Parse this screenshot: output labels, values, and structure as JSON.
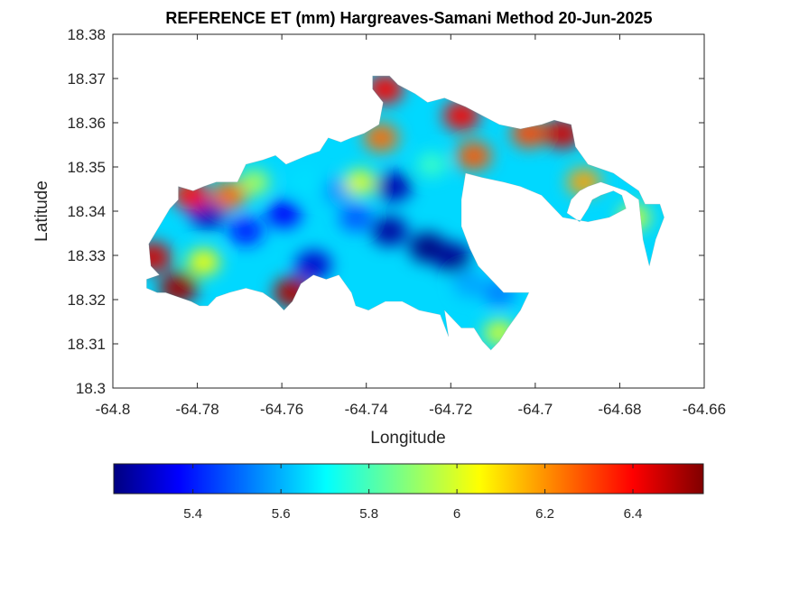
{
  "chart_data": {
    "type": "heatmap",
    "title": "REFERENCE ET (mm) Hargreaves-Samani Method  20-Jun-2025",
    "xlabel": "Longitude",
    "ylabel": "Latitude",
    "xlim": [
      -64.8,
      -64.66
    ],
    "ylim": [
      18.3,
      18.38
    ],
    "x_ticks": [
      -64.8,
      -64.78,
      -64.76,
      -64.74,
      -64.72,
      -64.7,
      -64.68,
      -64.66
    ],
    "x_tick_labels": [
      "-64.8",
      "-64.78",
      "-64.76",
      "-64.74",
      "-64.72",
      "-64.7",
      "-64.68",
      "-64.66"
    ],
    "y_ticks": [
      18.3,
      18.31,
      18.32,
      18.33,
      18.34,
      18.35,
      18.36,
      18.37,
      18.38
    ],
    "y_tick_labels": [
      "18.3",
      "18.31",
      "18.32",
      "18.33",
      "18.34",
      "18.35",
      "18.36",
      "18.37",
      "18.38"
    ],
    "colorbar": {
      "colormap": "jet",
      "clim": [
        5.22,
        6.56
      ],
      "ticks": [
        5.4,
        5.6,
        5.8,
        6,
        6.2,
        6.4
      ],
      "tick_labels": [
        "5.4",
        "5.6",
        "5.8",
        "6",
        "6.2",
        "6.4"
      ],
      "placement": "bottom"
    },
    "grid": false,
    "boundary": [
      [
        -64.792,
        18.3226
      ],
      [
        -64.792,
        18.3246
      ],
      [
        -64.789,
        18.3256
      ],
      [
        -64.791,
        18.3276
      ],
      [
        -64.7915,
        18.3326
      ],
      [
        -64.789,
        18.3366
      ],
      [
        -64.7865,
        18.3406
      ],
      [
        -64.7845,
        18.3426
      ],
      [
        -64.7845,
        18.3456
      ],
      [
        -64.781,
        18.3446
      ],
      [
        -64.7785,
        18.3456
      ],
      [
        -64.7755,
        18.3466
      ],
      [
        -64.7705,
        18.3466
      ],
      [
        -64.7685,
        18.3506
      ],
      [
        -64.7645,
        18.3516
      ],
      [
        -64.7615,
        18.3526
      ],
      [
        -64.759,
        18.3506
      ],
      [
        -64.754,
        18.3526
      ],
      [
        -64.751,
        18.3536
      ],
      [
        -64.749,
        18.3566
      ],
      [
        -64.746,
        18.3556
      ],
      [
        -64.7435,
        18.3566
      ],
      [
        -64.7405,
        18.3576
      ],
      [
        -64.737,
        18.3596
      ],
      [
        -64.736,
        18.3646
      ],
      [
        -64.7385,
        18.3676
      ],
      [
        -64.7385,
        18.3706
      ],
      [
        -64.7345,
        18.3706
      ],
      [
        -64.7325,
        18.3686
      ],
      [
        -64.7285,
        18.3666
      ],
      [
        -64.7255,
        18.3646
      ],
      [
        -64.7215,
        18.3656
      ],
      [
        -64.7165,
        18.3636
      ],
      [
        -64.7125,
        18.3616
      ],
      [
        -64.7085,
        18.3596
      ],
      [
        -64.7035,
        18.3586
      ],
      [
        -64.6985,
        18.3596
      ],
      [
        -64.6955,
        18.3606
      ],
      [
        -64.6915,
        18.3596
      ],
      [
        -64.6905,
        18.3546
      ],
      [
        -64.6875,
        18.3506
      ],
      [
        -64.6845,
        18.3496
      ],
      [
        -64.6815,
        18.3486
      ],
      [
        -64.6785,
        18.3466
      ],
      [
        -64.6755,
        18.3446
      ],
      [
        -64.674,
        18.3416
      ],
      [
        -64.6705,
        18.3416
      ],
      [
        -64.6695,
        18.3386
      ],
      [
        -64.6715,
        18.3336
      ],
      [
        -64.673,
        18.3276
      ],
      [
        -64.6745,
        18.3336
      ],
      [
        -64.6755,
        18.3426
      ],
      [
        -64.6785,
        18.3446
      ],
      [
        -64.6815,
        18.3456
      ],
      [
        -64.6845,
        18.3466
      ],
      [
        -64.6875,
        18.3456
      ],
      [
        -64.6895,
        18.3446
      ],
      [
        -64.6915,
        18.3426
      ],
      [
        -64.6925,
        18.3396
      ],
      [
        -64.6895,
        18.3376
      ],
      [
        -64.6875,
        18.3406
      ],
      [
        -64.6865,
        18.3426
      ],
      [
        -64.6845,
        18.3436
      ],
      [
        -64.6815,
        18.3446
      ],
      [
        -64.6795,
        18.3436
      ],
      [
        -64.6785,
        18.3406
      ],
      [
        -64.6825,
        18.3386
      ],
      [
        -64.6875,
        18.3376
      ],
      [
        -64.6935,
        18.3386
      ],
      [
        -64.6985,
        18.3436
      ],
      [
        -64.7035,
        18.3456
      ],
      [
        -64.7075,
        18.3466
      ],
      [
        -64.7125,
        18.3476
      ],
      [
        -64.7165,
        18.3486
      ],
      [
        -64.7175,
        18.3426
      ],
      [
        -64.7175,
        18.3366
      ],
      [
        -64.7155,
        18.3316
      ],
      [
        -64.7135,
        18.3276
      ],
      [
        -64.7105,
        18.3246
      ],
      [
        -64.7075,
        18.3216
      ],
      [
        -64.7015,
        18.3216
      ],
      [
        -64.7035,
        18.3176
      ],
      [
        -64.7065,
        18.3136
      ],
      [
        -64.7085,
        18.3106
      ],
      [
        -64.7105,
        18.3086
      ],
      [
        -64.7125,
        18.3106
      ],
      [
        -64.7145,
        18.3136
      ],
      [
        -64.7175,
        18.3136
      ],
      [
        -64.7195,
        18.3156
      ],
      [
        -64.7215,
        18.3176
      ],
      [
        -64.7205,
        18.3116
      ],
      [
        -64.7225,
        18.3166
      ],
      [
        -64.7275,
        18.3176
      ],
      [
        -64.7315,
        18.3196
      ],
      [
        -64.7355,
        18.3196
      ],
      [
        -64.7395,
        18.3176
      ],
      [
        -64.7425,
        18.3186
      ],
      [
        -64.7435,
        18.3216
      ],
      [
        -64.7465,
        18.3256
      ],
      [
        -64.7495,
        18.3246
      ],
      [
        -64.7525,
        18.3256
      ],
      [
        -64.7555,
        18.3236
      ],
      [
        -64.7575,
        18.3196
      ],
      [
        -64.7595,
        18.3176
      ],
      [
        -64.7615,
        18.3196
      ],
      [
        -64.7645,
        18.3216
      ],
      [
        -64.7685,
        18.3226
      ],
      [
        -64.7725,
        18.3216
      ],
      [
        -64.7755,
        18.3206
      ],
      [
        -64.7775,
        18.3186
      ],
      [
        -64.7795,
        18.3186
      ],
      [
        -64.7815,
        18.3196
      ],
      [
        -64.7845,
        18.3206
      ],
      [
        -64.7875,
        18.3216
      ],
      [
        -64.7895,
        18.3216
      ]
    ],
    "hotspots": [
      {
        "lon": -64.7255,
        "lat": 18.3318,
        "value": 5.22
      },
      {
        "lon": -64.7195,
        "lat": 18.3295,
        "value": 5.24
      },
      {
        "lon": -64.7345,
        "lat": 18.3355,
        "value": 5.26
      },
      {
        "lon": -64.7335,
        "lat": 18.3455,
        "value": 5.28
      },
      {
        "lon": -64.7775,
        "lat": 18.3394,
        "value": 5.3
      },
      {
        "lon": -64.7525,
        "lat": 18.3278,
        "value": 5.32
      },
      {
        "lon": -64.7595,
        "lat": 18.3394,
        "value": 5.38
      },
      {
        "lon": -64.7685,
        "lat": 18.3355,
        "value": 5.42
      },
      {
        "lon": -64.7425,
        "lat": 18.3385,
        "value": 5.5
      },
      {
        "lon": -64.7465,
        "lat": 18.3445,
        "value": 5.58
      },
      {
        "lon": -64.7085,
        "lat": 18.3215,
        "value": 5.55
      },
      {
        "lon": -64.7155,
        "lat": 18.3236,
        "value": 5.6
      },
      {
        "lon": -64.7545,
        "lat": 18.3465,
        "value": 5.68
      },
      {
        "lon": -64.7245,
        "lat": 18.3505,
        "value": 5.8
      },
      {
        "lon": -64.7035,
        "lat": 18.3275,
        "value": 5.85
      },
      {
        "lon": -64.7415,
        "lat": 18.3465,
        "value": 6.02
      },
      {
        "lon": -64.7665,
        "lat": 18.3465,
        "value": 5.95
      },
      {
        "lon": -64.7785,
        "lat": 18.3285,
        "value": 6.05
      },
      {
        "lon": -64.7085,
        "lat": 18.3125,
        "value": 6.0
      },
      {
        "lon": -64.6765,
        "lat": 18.3386,
        "value": 6.0
      },
      {
        "lon": -64.6885,
        "lat": 18.3466,
        "value": 6.18
      },
      {
        "lon": -64.7365,
        "lat": 18.3566,
        "value": 6.25
      },
      {
        "lon": -64.7725,
        "lat": 18.3435,
        "value": 6.25
      },
      {
        "lon": -64.7905,
        "lat": 18.3296,
        "value": 6.45
      },
      {
        "lon": -64.7845,
        "lat": 18.3226,
        "value": 6.52
      },
      {
        "lon": -64.7575,
        "lat": 18.3216,
        "value": 6.5
      },
      {
        "lon": -64.7815,
        "lat": 18.3436,
        "value": 6.38
      },
      {
        "lon": -64.7355,
        "lat": 18.3676,
        "value": 6.4
      },
      {
        "lon": -64.7175,
        "lat": 18.3616,
        "value": 6.4
      },
      {
        "lon": -64.7015,
        "lat": 18.3576,
        "value": 6.3
      },
      {
        "lon": -64.6935,
        "lat": 18.3576,
        "value": 6.45
      },
      {
        "lon": -64.7145,
        "lat": 18.3525,
        "value": 6.28
      }
    ]
  }
}
